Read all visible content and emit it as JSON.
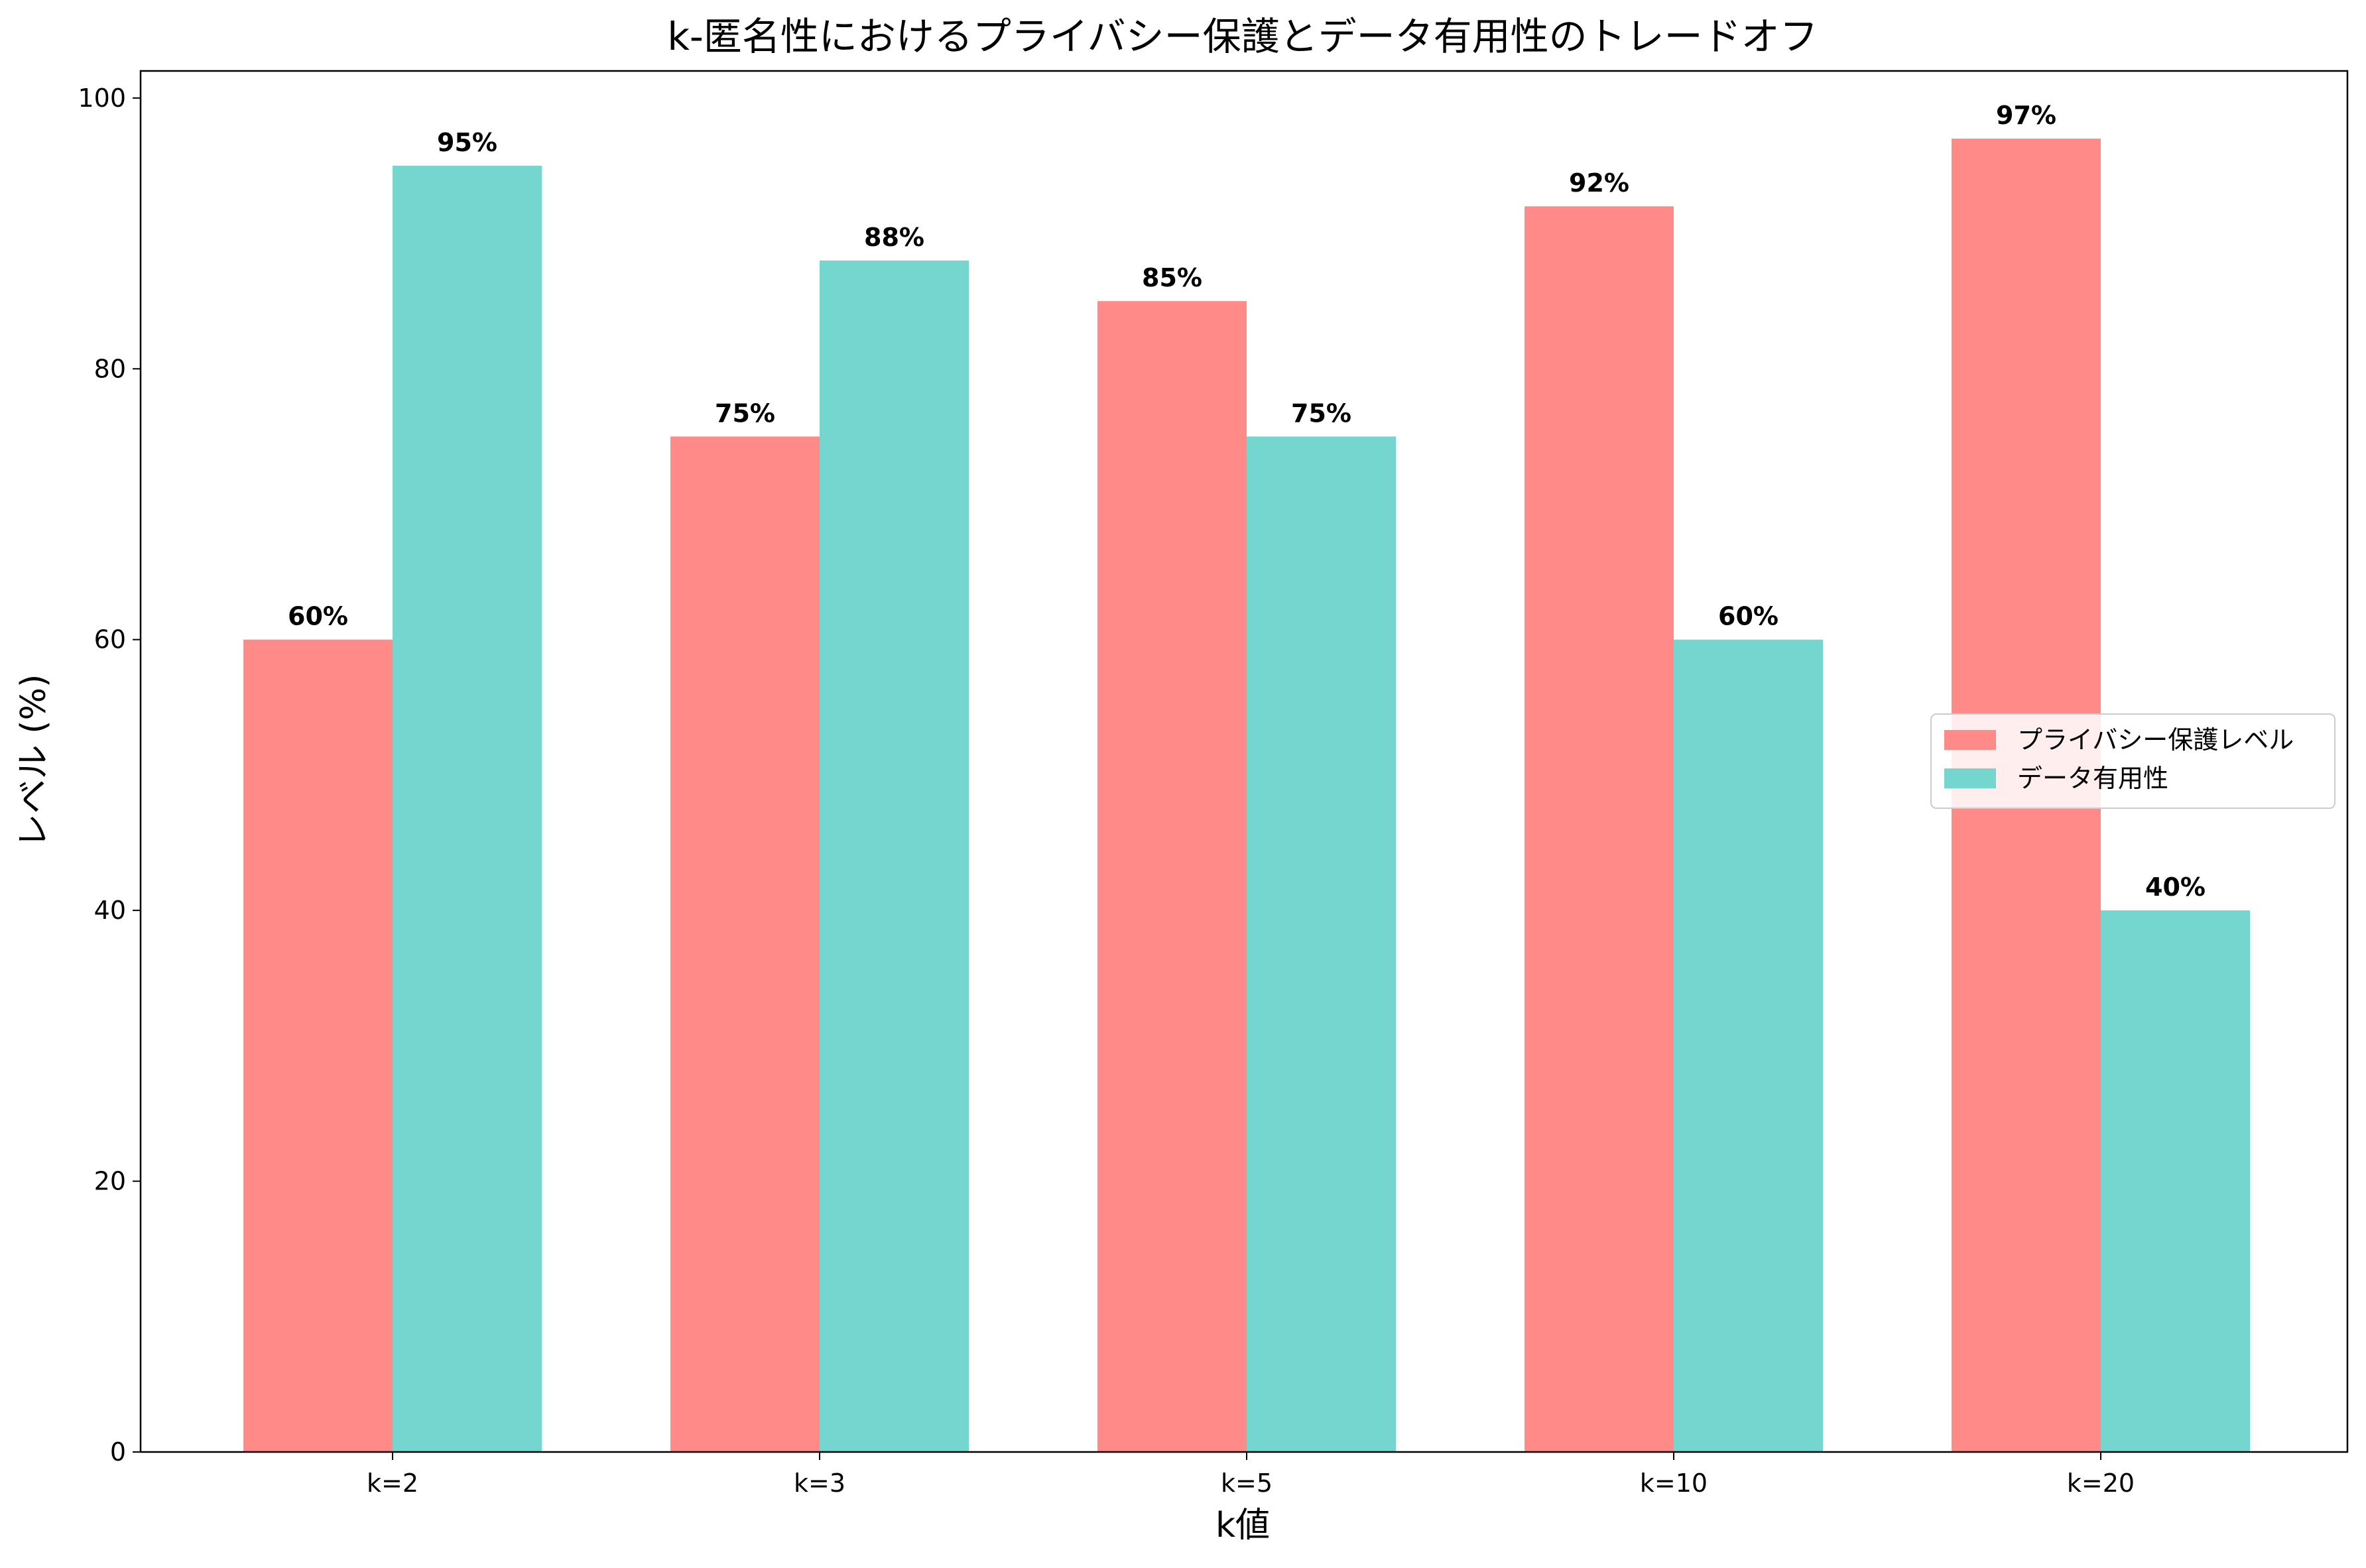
{
  "chart_data": {
    "type": "bar",
    "title": "k-匿名性におけるプライバシー保護とデータ有用性のトレードオフ",
    "xlabel": "k値",
    "ylabel": "レベル (%)",
    "categories": [
      "k=2",
      "k=3",
      "k=5",
      "k=10",
      "k=20"
    ],
    "series": [
      {
        "name": "プライバシー保護レベル",
        "color": "#ff8a87",
        "values": [
          60,
          75,
          85,
          92,
          97
        ],
        "labels": [
          "60%",
          "75%",
          "85%",
          "92%",
          "97%"
        ]
      },
      {
        "name": "データ有用性",
        "color": "#74d6cf",
        "values": [
          95,
          88,
          75,
          60,
          40
        ],
        "labels": [
          "95%",
          "88%",
          "75%",
          "60%",
          "40%"
        ]
      }
    ],
    "ylim": [
      0,
      102
    ],
    "yticks": [
      0,
      20,
      40,
      60,
      80,
      100
    ],
    "grid": false,
    "legend_position": "center-right"
  }
}
